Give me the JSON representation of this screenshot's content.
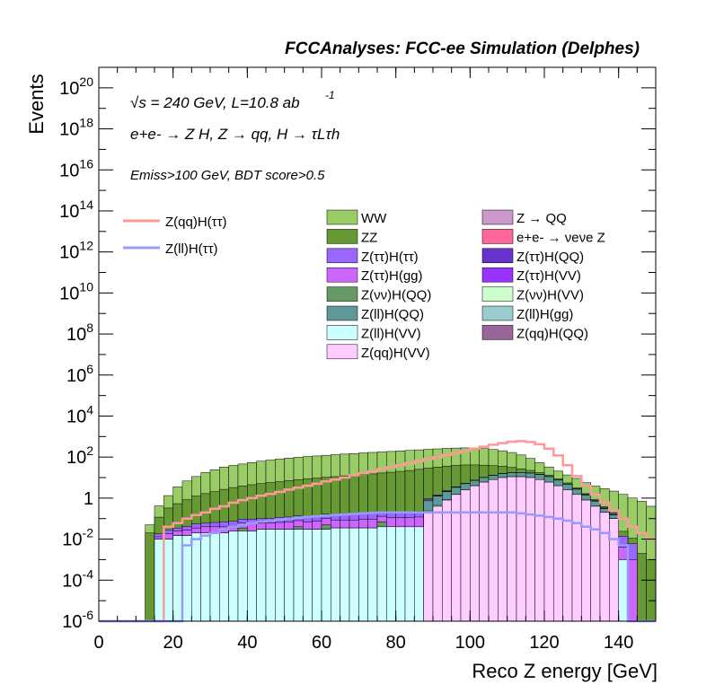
{
  "header": {
    "title": "FCCAnalyses: FCC-ee Simulation (Delphes)"
  },
  "chart_data": {
    "type": "area",
    "title": "FCCAnalyses: FCC-ee Simulation (Delphes)",
    "xlabel": "Reco Z energy [GeV]",
    "ylabel": "Events",
    "xlim": [
      0,
      150
    ],
    "ylim": [
      1e-06,
      1e+21
    ],
    "yscale": "log",
    "grid": false,
    "legend_placement": "upper-middle",
    "x_ticks": [
      "0",
      "20",
      "40",
      "60",
      "80",
      "100",
      "120",
      "140"
    ],
    "y_ticks": [
      "10^-6",
      "10^-4",
      "10^-2",
      "1",
      "10^2",
      "10^4",
      "10^6",
      "10^8",
      "10^10",
      "10^12",
      "10^14",
      "10^16",
      "10^18",
      "10^20"
    ],
    "annotations": {
      "energy_line": "√s = 240 GeV, L=10.8 ab",
      "energy_sup": "-1",
      "process_line": "e+e- → Z H, Z → qq, H → τLτh",
      "selection_line": "Emiss>100 GeV, BDT score>0.5"
    },
    "bins": {
      "start": 0,
      "width": 2.5,
      "count": 60
    },
    "stack_series": [
      {
        "name": "WW",
        "color": "#99cc66",
        "values": [
          0,
          0,
          0,
          0,
          0,
          0.03,
          0.3,
          1.0,
          3.0,
          6.0,
          10.0,
          16.0,
          22.0,
          30.0,
          36.0,
          42.0,
          50.0,
          58.0,
          66.0,
          74.0,
          82.0,
          90.0,
          98.0,
          104.0,
          112.0,
          120.0,
          128.0,
          136.0,
          146.0,
          154.0,
          162.0,
          170.0,
          180.0,
          190.0,
          200.0,
          210.0,
          220.0,
          230.0,
          236.0,
          240.0,
          236.0,
          220.0,
          196.0,
          168.0,
          136.0,
          100.0,
          64.0,
          36.0,
          20.0,
          12.0,
          8.0,
          6.0,
          4.0,
          3.0,
          2.5,
          2.0,
          1.5,
          1.0,
          0.7,
          0.4
        ]
      },
      {
        "name": "ZZ",
        "color": "#669933",
        "values": [
          0,
          0,
          0,
          0,
          0,
          0.02,
          0.1,
          0.3,
          0.5,
          0.8,
          1.2,
          1.6,
          2.0,
          2.6,
          3.2,
          3.8,
          4.4,
          5.0,
          5.6,
          6.2,
          7.0,
          7.8,
          8.6,
          9.4,
          10.2,
          11.0,
          12.0,
          13.0,
          14.0,
          15.0,
          16.5,
          18.0,
          20.0,
          22.0,
          25.0,
          28.0,
          31.0,
          34.0,
          36.0,
          36.0,
          34.0,
          30.0,
          25.0,
          20.0,
          14.0,
          9.0,
          5.5,
          3.2,
          1.8,
          1.0,
          0.6,
          0.3,
          0.15,
          0.08,
          0.04,
          0.02,
          0.01,
          0.005,
          0.002,
          0.001
        ]
      },
      {
        "name": "Z(ττ)H(ττ)",
        "color": "#9966ff",
        "values": [
          0,
          0,
          0,
          0,
          0,
          0,
          0.005,
          0.01,
          0.01,
          0.015,
          0.02,
          0.02,
          0.025,
          0.03,
          0.03,
          0.035,
          0.04,
          0.04,
          0.045,
          0.05,
          0.05,
          0.055,
          0.06,
          0.06,
          0.065,
          0.07,
          0.07,
          0.075,
          0.08,
          0.08,
          0.085,
          0.09,
          0.09,
          0.095,
          0.1,
          0.1,
          0.11,
          0.12,
          0.13,
          0.14,
          0.15,
          0.16,
          0.17,
          0.18,
          0.19,
          0.2,
          0.2,
          0.2,
          0.18,
          0.16,
          0.13,
          0.1,
          0.07,
          0.05,
          0.03,
          0.02,
          0.01,
          0.005,
          0,
          0
        ]
      },
      {
        "name": "Z(ττ)H(gg)",
        "color": "#cc66ff",
        "values": [
          0,
          0,
          0,
          0,
          0,
          0,
          0.003,
          0.008,
          0.01,
          0.012,
          0.015,
          0.02,
          0.02,
          0.02,
          0.02,
          0.025,
          0.03,
          0.03,
          0.03,
          0.035,
          0.04,
          0.04,
          0.04,
          0.045,
          0.05,
          0.05,
          0.05,
          0.05,
          0.06,
          0.06,
          0.06,
          0.07,
          0.07,
          0.07,
          0.08,
          0.08,
          0.08,
          0.09,
          0.1,
          0.1,
          0.11,
          0.11,
          0.12,
          0.12,
          0.12,
          0.12,
          0.12,
          0.11,
          0.1,
          0.08,
          0.06,
          0.04,
          0.03,
          0.02,
          0.01,
          0.005,
          0.003,
          0.001,
          0,
          0
        ]
      },
      {
        "name": "Z(νν)H(QQ)",
        "color": "#669966",
        "values": [
          0,
          0,
          0,
          0,
          0,
          0,
          0,
          0,
          0,
          0,
          0,
          0,
          0,
          0,
          0,
          0.01,
          0,
          0,
          0,
          0,
          0,
          0.01,
          0,
          0,
          0.02,
          0,
          0,
          0,
          0,
          0,
          0.03,
          0,
          0,
          0,
          0,
          0,
          0,
          0.05,
          0,
          0,
          0,
          0,
          0,
          0,
          0,
          0,
          0.08,
          0,
          0,
          0,
          0,
          0,
          0,
          0,
          0,
          0,
          0,
          0,
          0,
          0
        ]
      },
      {
        "name": "Z(ll)H(QQ)",
        "color": "#5e9999",
        "values": [
          0,
          0,
          0,
          0,
          0,
          0,
          0,
          0,
          0,
          0,
          0,
          0,
          0,
          0,
          0,
          0,
          0,
          0,
          0,
          0,
          0,
          0,
          0,
          0,
          0,
          0,
          0,
          0,
          0,
          0,
          0,
          0,
          0,
          0,
          0,
          0.5,
          0.8,
          1.2,
          1.8,
          2.5,
          3.2,
          4.0,
          4.8,
          5.5,
          6.0,
          6.5,
          6.5,
          6.0,
          5.0,
          3.5,
          2.2,
          1.2,
          0.6,
          0.3,
          0.1,
          0.05,
          0,
          0,
          0,
          0
        ]
      },
      {
        "name": "Z(ll)H(VV)",
        "color": "#ccffff",
        "values": [
          0,
          0,
          0,
          0,
          0,
          0,
          0.01,
          0.01,
          0.015,
          0.015,
          0.02,
          0.02,
          0.02,
          0.02,
          0.025,
          0.025,
          0.025,
          0.03,
          0.03,
          0.03,
          0.03,
          0.03,
          0.03,
          0.03,
          0.03,
          0.035,
          0.035,
          0.035,
          0.035,
          0.035,
          0.04,
          0.04,
          0.04,
          0.04,
          0.04,
          0.04,
          0.04,
          0.04,
          0.04,
          0.04,
          0.04,
          0.04,
          0.04,
          0.04,
          0.035,
          0.035,
          0.03,
          0.03,
          0.025,
          0.02,
          0.015,
          0.01,
          0.008,
          0.005,
          0.003,
          0.002,
          0.001,
          0,
          0,
          0
        ]
      },
      {
        "name": "Z(qq)H(VV)",
        "color": "#ffccff",
        "values": [
          0,
          0,
          0,
          0,
          0,
          0,
          0,
          0,
          0,
          0,
          0,
          0,
          0,
          0,
          0,
          0,
          0,
          0,
          0,
          0,
          0,
          0,
          0,
          0,
          0,
          0,
          0,
          0,
          0,
          0,
          0,
          0,
          0,
          0,
          0,
          0.2,
          0.4,
          0.8,
          1.5,
          2.5,
          4.0,
          6.0,
          8.0,
          10.0,
          11.0,
          11.0,
          10.0,
          8.0,
          6.0,
          4.0,
          2.5,
          1.5,
          0.8,
          0.4,
          0.2,
          0.1,
          0,
          0,
          0,
          0
        ]
      },
      {
        "name": "Z → QQ",
        "color": "#cc99cc",
        "values": [
          0,
          0,
          0,
          0,
          0,
          0,
          0,
          0,
          0,
          0,
          0,
          0,
          0,
          0,
          0,
          0,
          0,
          0,
          0,
          0,
          0,
          0,
          0,
          0,
          0,
          0,
          0,
          0,
          0,
          0,
          0,
          0,
          0,
          0,
          0,
          0,
          0,
          0,
          0,
          0,
          0,
          0,
          0,
          0,
          0,
          0,
          0,
          0,
          0,
          0,
          0,
          0,
          0,
          0,
          0,
          0,
          0,
          0,
          0,
          0
        ]
      },
      {
        "name": "e+e- → νeνe Z",
        "color": "#ff6699",
        "values": [
          0,
          0,
          0,
          0,
          0,
          0,
          0,
          0,
          0,
          0,
          0,
          0,
          0,
          0,
          0,
          0,
          0,
          0,
          0,
          0,
          0,
          0,
          0,
          0,
          0,
          0,
          0,
          0,
          0,
          0,
          0,
          0,
          0,
          0,
          0,
          0,
          0,
          0,
          0,
          0,
          0,
          0,
          0,
          0,
          0,
          0,
          0,
          0,
          0,
          0,
          0,
          0,
          0,
          0,
          0,
          0,
          0,
          0,
          0,
          0
        ]
      },
      {
        "name": "Z(ττ)H(QQ)",
        "color": "#6633cc",
        "values": [
          0,
          0,
          0,
          0,
          0,
          0,
          0,
          0,
          0,
          0,
          0,
          0,
          0,
          0,
          0,
          0,
          0,
          0,
          0,
          0,
          0,
          0,
          0,
          0,
          0,
          0,
          0,
          0,
          0,
          0,
          0,
          0,
          0,
          0,
          0,
          0,
          0,
          0,
          0,
          0,
          0,
          0,
          0,
          0,
          0,
          0,
          0,
          0,
          0,
          0,
          0,
          0,
          0,
          0,
          0,
          0,
          0,
          0,
          0,
          0
        ]
      },
      {
        "name": "Z(ττ)H(VV)",
        "color": "#9933ff",
        "values": [
          0,
          0,
          0,
          0,
          0,
          0,
          0,
          0,
          0,
          0,
          0,
          0,
          0,
          0,
          0,
          0,
          0,
          0,
          0,
          0,
          0,
          0,
          0,
          0,
          0,
          0,
          0,
          0,
          0,
          0,
          0,
          0,
          0,
          0,
          0,
          0,
          0,
          0,
          0,
          0,
          0,
          0,
          0,
          0,
          0,
          0,
          0,
          0,
          0,
          0,
          0,
          0,
          0,
          0,
          0,
          0,
          0,
          0,
          0,
          0
        ]
      },
      {
        "name": "Z(νν)H(VV)",
        "color": "#ccffcc",
        "values": [
          0,
          0,
          0,
          0,
          0,
          0,
          0,
          0,
          0,
          0,
          0,
          0,
          0,
          0,
          0,
          0,
          0,
          0,
          0,
          0,
          0,
          0,
          0,
          0,
          0,
          0,
          0,
          0,
          0,
          0,
          0,
          0,
          0,
          0,
          0,
          0,
          0,
          0,
          0,
          0,
          0,
          0,
          0,
          0,
          0,
          0,
          0,
          0,
          0,
          0,
          0,
          0,
          0,
          0,
          0,
          0,
          0,
          0,
          0,
          0
        ]
      },
      {
        "name": "Z(ll)H(gg)",
        "color": "#99cccc",
        "values": [
          0,
          0,
          0,
          0,
          0,
          0,
          0,
          0,
          0,
          0,
          0,
          0,
          0,
          0,
          0,
          0,
          0,
          0,
          0,
          0,
          0,
          0,
          0,
          0,
          0,
          0,
          0,
          0,
          0,
          0,
          0,
          0,
          0,
          0,
          0,
          0,
          0,
          0,
          0,
          0,
          0,
          0,
          0,
          0,
          0,
          0,
          0,
          0,
          0,
          0,
          0,
          0,
          0,
          0,
          0,
          0,
          0,
          0,
          0,
          0
        ]
      },
      {
        "name": "Z(qq)H(QQ)",
        "color": "#996699",
        "values": [
          0,
          0,
          0,
          0,
          0,
          0,
          0,
          0,
          0,
          0,
          0,
          0,
          0,
          0,
          0,
          0,
          0,
          0,
          0,
          0,
          0,
          0,
          0,
          0,
          0,
          0,
          0,
          0,
          0,
          0,
          0,
          0,
          0,
          0,
          0,
          0,
          0,
          0,
          0,
          0,
          0,
          0,
          0,
          0,
          0,
          0,
          0,
          0,
          0,
          0,
          0,
          0,
          0,
          0,
          0,
          0,
          0,
          0,
          0,
          0
        ]
      }
    ],
    "line_series": [
      {
        "name": "Z(qq)H(ττ)",
        "color": "#ff9999",
        "values": [
          0,
          0,
          0,
          0,
          0,
          0,
          0,
          0.04,
          0.06,
          0.1,
          0.15,
          0.2,
          0.3,
          0.4,
          0.6,
          0.8,
          1.0,
          1.3,
          1.6,
          2.0,
          2.6,
          3.2,
          4.0,
          5.0,
          6.5,
          8.0,
          10.0,
          13.0,
          16.0,
          20.0,
          26.0,
          32.0,
          40.0,
          50.0,
          64.0,
          80.0,
          100.0,
          130.0,
          160.0,
          200.0,
          260.0,
          320.0,
          400.0,
          480.0,
          560.0,
          600.0,
          540.0,
          420.0,
          260.0,
          120.0,
          40.0,
          12.0,
          4.0,
          1.5,
          0.6,
          0.25,
          0.1,
          0.04,
          0.02,
          0.01
        ]
      },
      {
        "name": "Z(ll)H(ττ)",
        "color": "#9999ff",
        "values": [
          0,
          0,
          0,
          0,
          0,
          0,
          0,
          0,
          0,
          0.005,
          0.01,
          0.015,
          0.02,
          0.03,
          0.04,
          0.05,
          0.06,
          0.07,
          0.08,
          0.09,
          0.1,
          0.11,
          0.12,
          0.13,
          0.14,
          0.15,
          0.16,
          0.17,
          0.18,
          0.19,
          0.2,
          0.2,
          0.2,
          0.2,
          0.2,
          0.2,
          0.2,
          0.2,
          0.2,
          0.2,
          0.2,
          0.2,
          0.2,
          0.2,
          0.2,
          0.18,
          0.16,
          0.14,
          0.12,
          0.1,
          0.08,
          0.06,
          0.04,
          0.03,
          0.02,
          0.01,
          0.005,
          0,
          0,
          0
        ]
      }
    ]
  }
}
